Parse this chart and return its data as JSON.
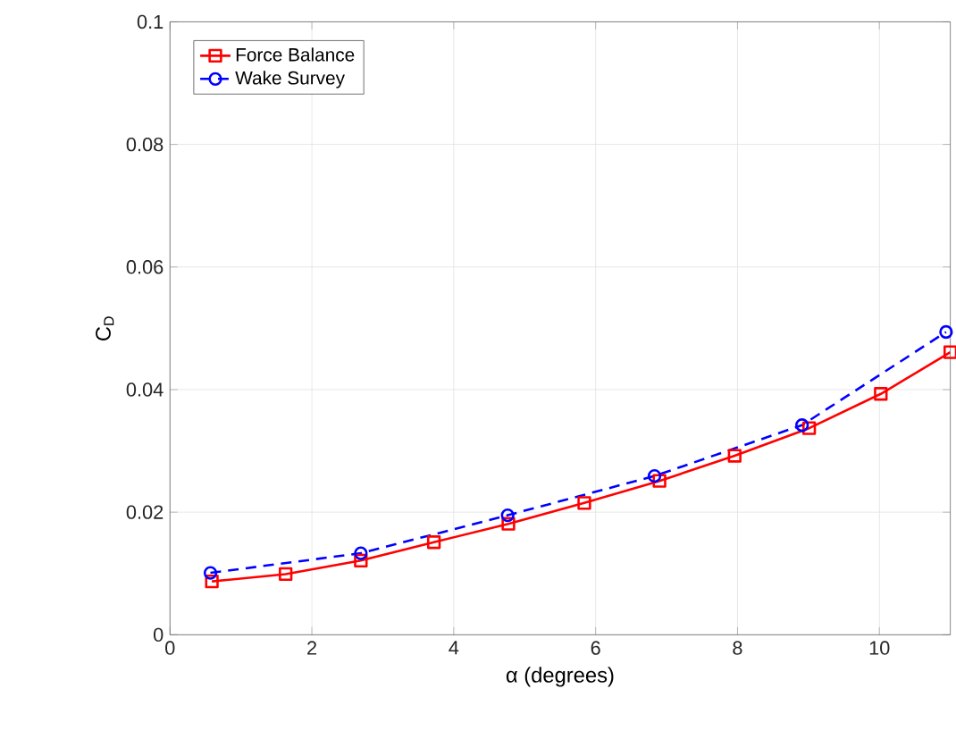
{
  "chart_data": {
    "type": "line",
    "xlabel": "α (degrees)",
    "ylabel": "C$_{D}$",
    "xlim": [
      0,
      11
    ],
    "ylim": [
      0,
      0.1
    ],
    "xticks": [
      0,
      2,
      4,
      6,
      8,
      10
    ],
    "yticks": [
      0,
      {
        "value": 0.02,
        "label": "0.02"
      },
      {
        "value": 0.04,
        "label": "0.04"
      },
      {
        "value": 0.06,
        "label": "0.06"
      },
      {
        "value": 0.08,
        "label": "0.08"
      },
      {
        "value": 0.1,
        "label": "0.1"
      }
    ],
    "grid": true,
    "legend": "top left",
    "series": [
      {
        "name": "Force Balance",
        "color": "#ff0000",
        "marker": "square",
        "line_style": "solid",
        "x": [
          0.59,
          1.63,
          2.69,
          3.72,
          4.77,
          5.84,
          6.9,
          7.96,
          9.01,
          10.02,
          11
        ],
        "values": [
          0.0087,
          0.0099,
          0.0121,
          0.0151,
          0.0181,
          0.0215,
          0.0251,
          0.0292,
          0.0337,
          0.0393,
          0.0461
        ]
      },
      {
        "name": "Wake Survey",
        "color": "#0000ff",
        "marker": "circle",
        "line_style": "dashed",
        "x": [
          0.57,
          2.69,
          4.76,
          6.83,
          8.91,
          10.94
        ],
        "values": [
          0.0101,
          0.0133,
          0.0195,
          0.0259,
          0.0342,
          0.0494
        ]
      }
    ]
  }
}
